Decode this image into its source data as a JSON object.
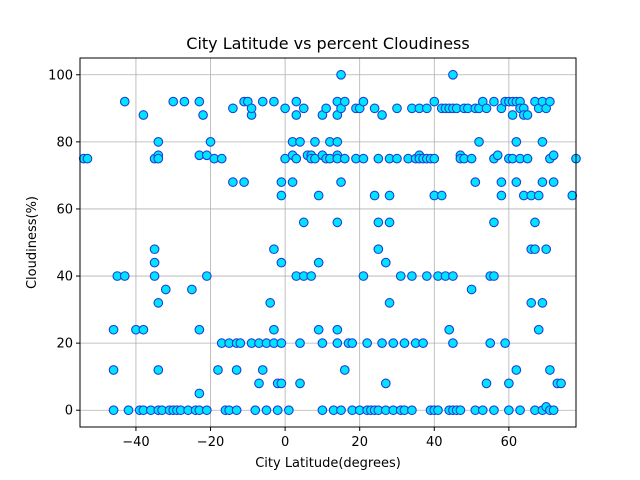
{
  "chart_data": {
    "type": "scatter",
    "title": "City Latitude vs percent Cloudiness",
    "xlabel": "City Latitude(degrees)",
    "ylabel": "Cloudiness(%)",
    "xlim": [
      -55,
      78
    ],
    "ylim": [
      -5,
      105
    ],
    "x_ticks": [
      -40,
      -20,
      0,
      20,
      40,
      60
    ],
    "y_ticks": [
      0,
      20,
      40,
      60,
      80,
      100
    ],
    "grid": true,
    "marker_fill": "#00e5ff",
    "marker_edge": "#1f3fd6",
    "points": [
      [
        -54,
        75
      ],
      [
        -53,
        75
      ],
      [
        -46,
        24
      ],
      [
        -46,
        12
      ],
      [
        -46,
        0
      ],
      [
        -45,
        40
      ],
      [
        -43,
        92
      ],
      [
        -43,
        40
      ],
      [
        -42,
        0
      ],
      [
        -40,
        24
      ],
      [
        -39,
        0
      ],
      [
        -38,
        88
      ],
      [
        -38,
        24
      ],
      [
        -38,
        0
      ],
      [
        -36,
        0
      ],
      [
        -35,
        75
      ],
      [
        -35,
        48
      ],
      [
        -35,
        44
      ],
      [
        -35,
        40
      ],
      [
        -34,
        80
      ],
      [
        -34,
        76
      ],
      [
        -34,
        75
      ],
      [
        -34,
        32
      ],
      [
        -34,
        12
      ],
      [
        -34,
        0
      ],
      [
        -33,
        0
      ],
      [
        -32,
        36
      ],
      [
        -31,
        0
      ],
      [
        -30,
        92
      ],
      [
        -30,
        0
      ],
      [
        -29,
        0
      ],
      [
        -28,
        0
      ],
      [
        -27,
        92
      ],
      [
        -26,
        0
      ],
      [
        -25,
        36
      ],
      [
        -24,
        0
      ],
      [
        -23,
        92
      ],
      [
        -23,
        76
      ],
      [
        -23,
        24
      ],
      [
        -23,
        5
      ],
      [
        -23,
        0
      ],
      [
        -22,
        88
      ],
      [
        -21,
        76
      ],
      [
        -21,
        40
      ],
      [
        -21,
        0
      ],
      [
        -20,
        80
      ],
      [
        -19,
        75
      ],
      [
        -18,
        12
      ],
      [
        -17,
        75
      ],
      [
        -17,
        20
      ],
      [
        -16,
        0
      ],
      [
        -15,
        20
      ],
      [
        -15,
        0
      ],
      [
        -14,
        90
      ],
      [
        -14,
        68
      ],
      [
        -13,
        20
      ],
      [
        -13,
        12
      ],
      [
        -13,
        0
      ],
      [
        -12,
        20
      ],
      [
        -11,
        92
      ],
      [
        -11,
        68
      ],
      [
        -10,
        92
      ],
      [
        -9,
        88
      ],
      [
        -9,
        90
      ],
      [
        -9,
        20
      ],
      [
        -8,
        0
      ],
      [
        -7,
        20
      ],
      [
        -7,
        8
      ],
      [
        -6,
        92
      ],
      [
        -6,
        12
      ],
      [
        -5,
        20
      ],
      [
        -5,
        0
      ],
      [
        -4,
        32
      ],
      [
        -3,
        92
      ],
      [
        -3,
        48
      ],
      [
        -3,
        24
      ],
      [
        -3,
        20
      ],
      [
        -2,
        8
      ],
      [
        -2,
        0
      ],
      [
        -1,
        68
      ],
      [
        -1,
        64
      ],
      [
        -1,
        44
      ],
      [
        -1,
        20
      ],
      [
        -1,
        8
      ],
      [
        0,
        90
      ],
      [
        0,
        75
      ],
      [
        1,
        0
      ],
      [
        2,
        80
      ],
      [
        2,
        76
      ],
      [
        2,
        68
      ],
      [
        3,
        92
      ],
      [
        3,
        88
      ],
      [
        3,
        75
      ],
      [
        3,
        40
      ],
      [
        4,
        80
      ],
      [
        4,
        20
      ],
      [
        4,
        8
      ],
      [
        5,
        90
      ],
      [
        5,
        56
      ],
      [
        5,
        40
      ],
      [
        6,
        76
      ],
      [
        7,
        76
      ],
      [
        7,
        75
      ],
      [
        7,
        40
      ],
      [
        8,
        80
      ],
      [
        8,
        75
      ],
      [
        9,
        64
      ],
      [
        9,
        44
      ],
      [
        9,
        24
      ],
      [
        10,
        88
      ],
      [
        10,
        76
      ],
      [
        10,
        20
      ],
      [
        10,
        0
      ],
      [
        11,
        90
      ],
      [
        11,
        75
      ],
      [
        12,
        80
      ],
      [
        12,
        75
      ],
      [
        13,
        0
      ],
      [
        14,
        92
      ],
      [
        14,
        88
      ],
      [
        14,
        80
      ],
      [
        14,
        76
      ],
      [
        14,
        75
      ],
      [
        14,
        56
      ],
      [
        14,
        24
      ],
      [
        14,
        20
      ],
      [
        15,
        100
      ],
      [
        15,
        90
      ],
      [
        15,
        68
      ],
      [
        15,
        0
      ],
      [
        16,
        92
      ],
      [
        16,
        75
      ],
      [
        16,
        12
      ],
      [
        17,
        20
      ],
      [
        18,
        20
      ],
      [
        18,
        0
      ],
      [
        19,
        90
      ],
      [
        19,
        75
      ],
      [
        20,
        90
      ],
      [
        20,
        0
      ],
      [
        21,
        92
      ],
      [
        21,
        75
      ],
      [
        21,
        40
      ],
      [
        22,
        20
      ],
      [
        22,
        0
      ],
      [
        23,
        0
      ],
      [
        24,
        90
      ],
      [
        24,
        64
      ],
      [
        24,
        0
      ],
      [
        25,
        75
      ],
      [
        25,
        56
      ],
      [
        25,
        48
      ],
      [
        25,
        0
      ],
      [
        26,
        88
      ],
      [
        26,
        20
      ],
      [
        27,
        44
      ],
      [
        27,
        8
      ],
      [
        27,
        0
      ],
      [
        28,
        75
      ],
      [
        28,
        64
      ],
      [
        28,
        56
      ],
      [
        28,
        32
      ],
      [
        29,
        20
      ],
      [
        29,
        0
      ],
      [
        30,
        90
      ],
      [
        30,
        75
      ],
      [
        31,
        40
      ],
      [
        31,
        0
      ],
      [
        32,
        20
      ],
      [
        32,
        0
      ],
      [
        33,
        75
      ],
      [
        34,
        90
      ],
      [
        34,
        40
      ],
      [
        34,
        0
      ],
      [
        35,
        75
      ],
      [
        35,
        20
      ],
      [
        36,
        90
      ],
      [
        36,
        76
      ],
      [
        36,
        75
      ],
      [
        37,
        75
      ],
      [
        37,
        20
      ],
      [
        38,
        90
      ],
      [
        38,
        75
      ],
      [
        38,
        40
      ],
      [
        39,
        75
      ],
      [
        39,
        0
      ],
      [
        40,
        92
      ],
      [
        40,
        75
      ],
      [
        40,
        64
      ],
      [
        40,
        0
      ],
      [
        41,
        40
      ],
      [
        41,
        0
      ],
      [
        42,
        90
      ],
      [
        42,
        64
      ],
      [
        43,
        90
      ],
      [
        43,
        40
      ],
      [
        44,
        90
      ],
      [
        44,
        24
      ],
      [
        44,
        0
      ],
      [
        45,
        100
      ],
      [
        45,
        90
      ],
      [
        45,
        40
      ],
      [
        45,
        20
      ],
      [
        45,
        0
      ],
      [
        46,
        90
      ],
      [
        46,
        0
      ],
      [
        47,
        76
      ],
      [
        47,
        75
      ],
      [
        47,
        0
      ],
      [
        48,
        90
      ],
      [
        48,
        75
      ],
      [
        49,
        90
      ],
      [
        50,
        75
      ],
      [
        50,
        36
      ],
      [
        51,
        90
      ],
      [
        51,
        68
      ],
      [
        51,
        0
      ],
      [
        52,
        80
      ],
      [
        52,
        90
      ],
      [
        53,
        92
      ],
      [
        53,
        0
      ],
      [
        54,
        90
      ],
      [
        54,
        8
      ],
      [
        55,
        40
      ],
      [
        55,
        20
      ],
      [
        56,
        92
      ],
      [
        56,
        75
      ],
      [
        56,
        56
      ],
      [
        56,
        40
      ],
      [
        56,
        0
      ],
      [
        57,
        76
      ],
      [
        58,
        90
      ],
      [
        58,
        68
      ],
      [
        58,
        64
      ],
      [
        59,
        92
      ],
      [
        59,
        20
      ],
      [
        60,
        92
      ],
      [
        60,
        75
      ],
      [
        60,
        8
      ],
      [
        60,
        0
      ],
      [
        61,
        92
      ],
      [
        61,
        88
      ],
      [
        61,
        75
      ],
      [
        62,
        92
      ],
      [
        62,
        80
      ],
      [
        62,
        68
      ],
      [
        62,
        12
      ],
      [
        63,
        92
      ],
      [
        63,
        90
      ],
      [
        63,
        75
      ],
      [
        63,
        0
      ],
      [
        64,
        90
      ],
      [
        64,
        88
      ],
      [
        64,
        64
      ],
      [
        65,
        88
      ],
      [
        65,
        75
      ],
      [
        66,
        64
      ],
      [
        66,
        48
      ],
      [
        66,
        32
      ],
      [
        67,
        92
      ],
      [
        67,
        56
      ],
      [
        67,
        48
      ],
      [
        67,
        0
      ],
      [
        68,
        90
      ],
      [
        68,
        64
      ],
      [
        68,
        24
      ],
      [
        69,
        92
      ],
      [
        69,
        80
      ],
      [
        69,
        68
      ],
      [
        69,
        32
      ],
      [
        69,
        0
      ],
      [
        70,
        90
      ],
      [
        70,
        48
      ],
      [
        70,
        1
      ],
      [
        71,
        92
      ],
      [
        71,
        75
      ],
      [
        71,
        12
      ],
      [
        71,
        0
      ],
      [
        72,
        76
      ],
      [
        72,
        68
      ],
      [
        72,
        0
      ],
      [
        73,
        8
      ],
      [
        74,
        8
      ],
      [
        77,
        64
      ],
      [
        78,
        75
      ]
    ]
  }
}
